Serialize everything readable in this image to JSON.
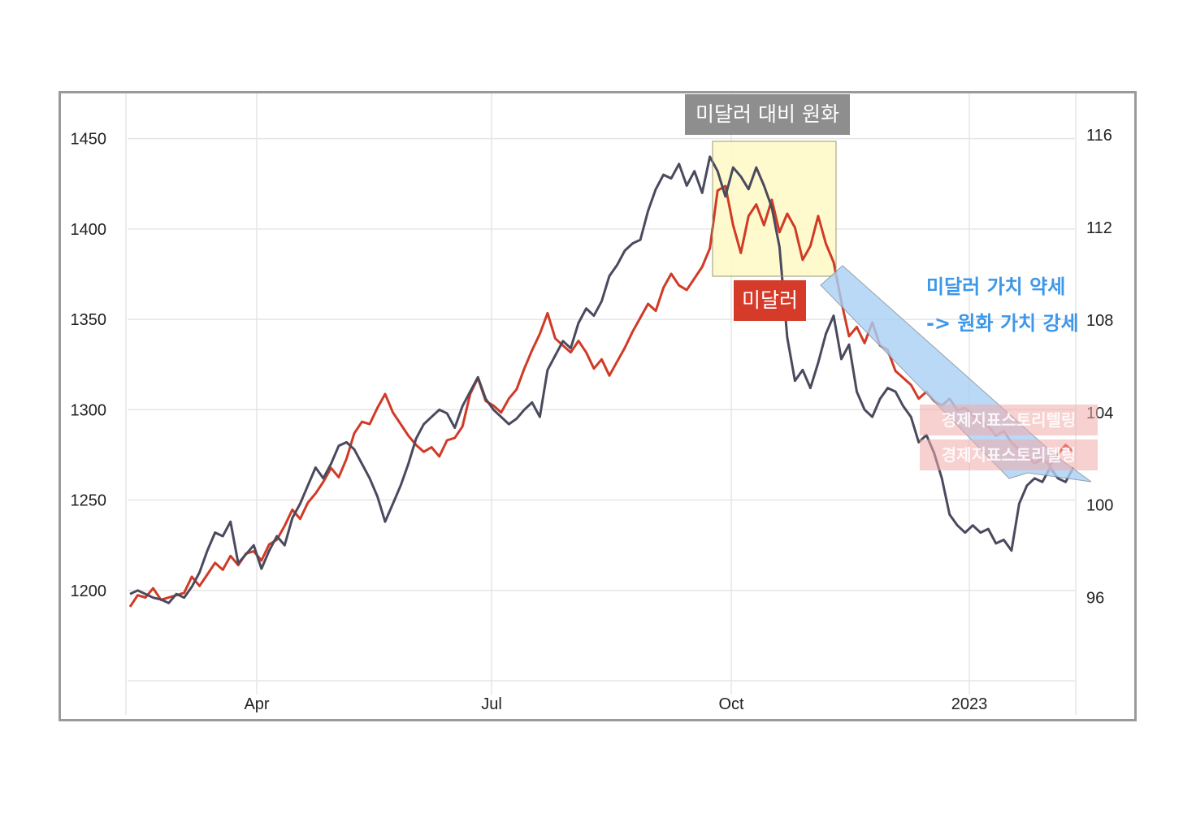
{
  "chart_data": {
    "type": "line",
    "title": "",
    "x_labels": [
      "Apr",
      "Jul",
      "Oct",
      "2023"
    ],
    "left_axis": {
      "label": "",
      "ticks": [
        "1450",
        "1400",
        "1350",
        "1300",
        "1250",
        "1200"
      ],
      "range": [
        1150,
        1475
      ]
    },
    "right_axis": {
      "label": "",
      "ticks": [
        "116",
        "112",
        "108",
        "104",
        "100",
        "96"
      ],
      "range": [
        92.4,
        117.8
      ]
    },
    "series": [
      {
        "name": "미달러",
        "color": "#d03a26",
        "axis": "right",
        "points": [
          [
            0,
            95.6
          ],
          [
            2,
            96.1
          ],
          [
            4,
            96.0
          ],
          [
            6,
            96.4
          ],
          [
            8,
            95.9
          ],
          [
            10,
            96.0
          ],
          [
            12,
            96.1
          ],
          [
            14,
            96.2
          ],
          [
            16,
            96.9
          ],
          [
            18,
            96.5
          ],
          [
            20,
            97.0
          ],
          [
            22,
            97.5
          ],
          [
            24,
            97.2
          ],
          [
            26,
            97.8
          ],
          [
            28,
            97.4
          ],
          [
            30,
            97.9
          ],
          [
            32,
            98.0
          ],
          [
            34,
            97.6
          ],
          [
            36,
            98.3
          ],
          [
            38,
            98.5
          ],
          [
            40,
            99.1
          ],
          [
            42,
            99.8
          ],
          [
            44,
            99.4
          ],
          [
            46,
            100.1
          ],
          [
            48,
            100.5
          ],
          [
            50,
            101.0
          ],
          [
            52,
            101.6
          ],
          [
            54,
            101.2
          ],
          [
            56,
            102.0
          ],
          [
            58,
            103.1
          ],
          [
            60,
            103.6
          ],
          [
            62,
            103.5
          ],
          [
            64,
            104.2
          ],
          [
            66,
            104.8
          ],
          [
            68,
            104.0
          ],
          [
            70,
            103.5
          ],
          [
            72,
            103.0
          ],
          [
            74,
            102.6
          ],
          [
            76,
            102.3
          ],
          [
            78,
            102.5
          ],
          [
            80,
            102.1
          ],
          [
            82,
            102.8
          ],
          [
            84,
            102.9
          ],
          [
            86,
            103.4
          ],
          [
            88,
            104.8
          ],
          [
            90,
            105.5
          ],
          [
            92,
            104.5
          ],
          [
            94,
            104.3
          ],
          [
            96,
            104.0
          ],
          [
            98,
            104.6
          ],
          [
            100,
            105.0
          ],
          [
            102,
            105.9
          ],
          [
            104,
            106.7
          ],
          [
            106,
            107.4
          ],
          [
            108,
            108.3
          ],
          [
            110,
            107.2
          ],
          [
            112,
            106.9
          ],
          [
            114,
            106.6
          ],
          [
            116,
            107.1
          ],
          [
            118,
            106.6
          ],
          [
            120,
            105.9
          ],
          [
            122,
            106.3
          ],
          [
            124,
            105.6
          ],
          [
            126,
            106.2
          ],
          [
            128,
            106.8
          ],
          [
            130,
            107.5
          ],
          [
            132,
            108.1
          ],
          [
            134,
            108.7
          ],
          [
            136,
            108.4
          ],
          [
            138,
            109.4
          ],
          [
            140,
            110.0
          ],
          [
            142,
            109.5
          ],
          [
            144,
            109.3
          ],
          [
            146,
            109.8
          ],
          [
            148,
            110.3
          ],
          [
            150,
            111.1
          ],
          [
            152,
            113.6
          ],
          [
            154,
            113.8
          ],
          [
            156,
            112.1
          ],
          [
            158,
            110.9
          ],
          [
            160,
            112.5
          ],
          [
            162,
            113.0
          ],
          [
            164,
            112.1
          ],
          [
            166,
            113.2
          ],
          [
            168,
            111.8
          ],
          [
            170,
            112.6
          ],
          [
            172,
            112.0
          ],
          [
            174,
            110.6
          ],
          [
            176,
            111.2
          ],
          [
            178,
            112.5
          ],
          [
            180,
            111.3
          ],
          [
            182,
            110.5
          ],
          [
            184,
            108.8
          ],
          [
            186,
            107.3
          ],
          [
            188,
            107.7
          ],
          [
            190,
            107.0
          ],
          [
            192,
            107.9
          ],
          [
            194,
            106.9
          ],
          [
            196,
            106.7
          ],
          [
            198,
            105.8
          ],
          [
            200,
            105.5
          ],
          [
            202,
            105.2
          ],
          [
            204,
            104.6
          ],
          [
            206,
            104.9
          ],
          [
            208,
            104.5
          ],
          [
            210,
            104.3
          ],
          [
            212,
            104.6
          ],
          [
            214,
            104.1
          ],
          [
            216,
            104.2
          ],
          [
            218,
            103.9
          ],
          [
            220,
            103.6
          ],
          [
            222,
            103.4
          ],
          [
            224,
            103.0
          ],
          [
            226,
            103.2
          ],
          [
            228,
            102.7
          ],
          [
            230,
            102.4
          ],
          [
            232,
            102.1
          ],
          [
            234,
            101.8
          ],
          [
            236,
            102.0
          ],
          [
            238,
            101.7
          ],
          [
            240,
            102.2
          ],
          [
            242,
            102.6
          ],
          [
            244,
            102.3
          ]
        ]
      },
      {
        "name": "미달러 대비 원화",
        "color": "#4a4a5e",
        "axis": "left",
        "points": [
          [
            0,
            1198
          ],
          [
            2,
            1200
          ],
          [
            4,
            1198
          ],
          [
            6,
            1196
          ],
          [
            8,
            1195
          ],
          [
            10,
            1193
          ],
          [
            12,
            1198
          ],
          [
            14,
            1196
          ],
          [
            16,
            1202
          ],
          [
            18,
            1210
          ],
          [
            20,
            1222
          ],
          [
            22,
            1232
          ],
          [
            24,
            1230
          ],
          [
            26,
            1238
          ],
          [
            28,
            1215
          ],
          [
            30,
            1220
          ],
          [
            32,
            1225
          ],
          [
            34,
            1212
          ],
          [
            36,
            1222
          ],
          [
            38,
            1230
          ],
          [
            40,
            1225
          ],
          [
            42,
            1240
          ],
          [
            44,
            1248
          ],
          [
            46,
            1258
          ],
          [
            48,
            1268
          ],
          [
            50,
            1262
          ],
          [
            52,
            1270
          ],
          [
            54,
            1280
          ],
          [
            56,
            1282
          ],
          [
            58,
            1278
          ],
          [
            60,
            1270
          ],
          [
            62,
            1262
          ],
          [
            64,
            1252
          ],
          [
            66,
            1238
          ],
          [
            68,
            1248
          ],
          [
            70,
            1258
          ],
          [
            72,
            1270
          ],
          [
            74,
            1284
          ],
          [
            76,
            1292
          ],
          [
            78,
            1296
          ],
          [
            80,
            1300
          ],
          [
            82,
            1298
          ],
          [
            84,
            1290
          ],
          [
            86,
            1302
          ],
          [
            88,
            1310
          ],
          [
            90,
            1318
          ],
          [
            92,
            1306
          ],
          [
            94,
            1300
          ],
          [
            96,
            1296
          ],
          [
            98,
            1292
          ],
          [
            100,
            1295
          ],
          [
            102,
            1300
          ],
          [
            104,
            1304
          ],
          [
            106,
            1296
          ],
          [
            108,
            1322
          ],
          [
            110,
            1330
          ],
          [
            112,
            1338
          ],
          [
            114,
            1334
          ],
          [
            116,
            1348
          ],
          [
            118,
            1356
          ],
          [
            120,
            1352
          ],
          [
            122,
            1360
          ],
          [
            124,
            1374
          ],
          [
            126,
            1380
          ],
          [
            128,
            1388
          ],
          [
            130,
            1392
          ],
          [
            132,
            1394
          ],
          [
            134,
            1410
          ],
          [
            136,
            1422
          ],
          [
            138,
            1430
          ],
          [
            140,
            1428
          ],
          [
            142,
            1436
          ],
          [
            144,
            1424
          ],
          [
            146,
            1432
          ],
          [
            148,
            1420
          ],
          [
            150,
            1440
          ],
          [
            152,
            1432
          ],
          [
            154,
            1418
          ],
          [
            156,
            1434
          ],
          [
            158,
            1429
          ],
          [
            160,
            1422
          ],
          [
            162,
            1434
          ],
          [
            164,
            1424
          ],
          [
            166,
            1412
          ],
          [
            168,
            1390
          ],
          [
            170,
            1340
          ],
          [
            172,
            1316
          ],
          [
            174,
            1322
          ],
          [
            176,
            1312
          ],
          [
            178,
            1326
          ],
          [
            180,
            1342
          ],
          [
            182,
            1352
          ],
          [
            184,
            1328
          ],
          [
            186,
            1336
          ],
          [
            188,
            1310
          ],
          [
            190,
            1300
          ],
          [
            192,
            1296
          ],
          [
            194,
            1306
          ],
          [
            196,
            1312
          ],
          [
            198,
            1310
          ],
          [
            200,
            1302
          ],
          [
            202,
            1296
          ],
          [
            204,
            1282
          ],
          [
            206,
            1286
          ],
          [
            208,
            1276
          ],
          [
            210,
            1262
          ],
          [
            212,
            1242
          ],
          [
            214,
            1236
          ],
          [
            216,
            1232
          ],
          [
            218,
            1236
          ],
          [
            220,
            1232
          ],
          [
            222,
            1234
          ],
          [
            224,
            1226
          ],
          [
            226,
            1228
          ],
          [
            228,
            1222
          ],
          [
            230,
            1248
          ],
          [
            232,
            1258
          ],
          [
            234,
            1262
          ],
          [
            236,
            1260
          ],
          [
            238,
            1268
          ],
          [
            240,
            1262
          ],
          [
            242,
            1260
          ],
          [
            244,
            1268
          ]
        ]
      }
    ],
    "annotations": [
      "미달러 대비 원화",
      "미달러",
      "미달러 가치 약세",
      "-> 원화 가치 강세"
    ],
    "watermark": [
      "경제지표스토리텔링",
      "경제지표스토리텔링"
    ]
  },
  "annotations_text": {
    "title_box": "미달러 대비 원화",
    "usd_box": "미달러",
    "trend_line1": "미달러 가치 약세",
    "trend_line2": "-> 원화 가치 강세",
    "watermark1": "경제지표스토리텔링",
    "watermark2": "경제지표스토리텔링"
  },
  "colors": {
    "usd": "#d03a26",
    "krw": "#4a4a5e",
    "highlight": "#fff9c4",
    "arrow": "#a9d0f5",
    "accent_blue": "#3d97e8"
  }
}
